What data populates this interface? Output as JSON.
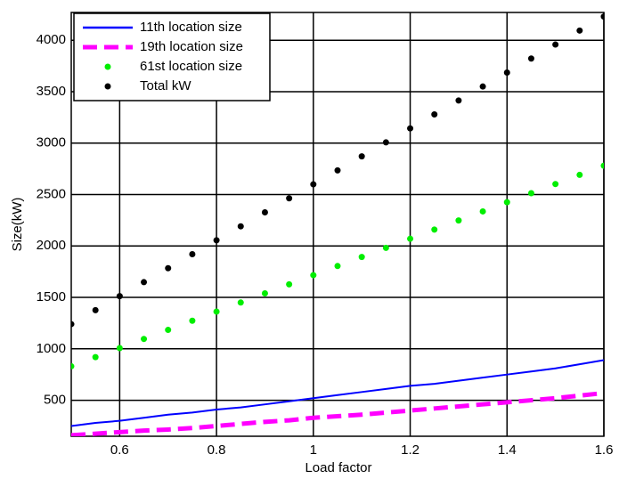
{
  "chart_data": {
    "type": "line",
    "xlabel": "Load factor",
    "ylabel": "Size(kW)",
    "xlim": [
      0.5,
      1.6
    ],
    "ylim": [
      150,
      4270
    ],
    "xticks": [
      0.6,
      0.8,
      1,
      1.2,
      1.4,
      1.6
    ],
    "yticks": [
      500,
      1000,
      1500,
      2000,
      2500,
      3000,
      3500,
      4000
    ],
    "grid": true,
    "legend": "upper-left",
    "x": [
      0.5,
      0.55,
      0.6,
      0.65,
      0.7,
      0.75,
      0.8,
      0.85,
      0.9,
      0.95,
      1,
      1.05,
      1.1,
      1.15,
      1.2,
      1.25,
      1.3,
      1.35,
      1.4,
      1.45,
      1.5,
      1.55,
      1.6
    ],
    "series": [
      {
        "name": "11th location size",
        "color": "#0000ff",
        "style": "solid",
        "values": [
          250,
          280,
          300,
          330,
          360,
          380,
          410,
          430,
          460,
          490,
          520,
          550,
          580,
          610,
          640,
          660,
          690,
          720,
          750,
          780,
          810,
          850,
          890
        ]
      },
      {
        "name": "19th location size",
        "color": "#ff00ff",
        "style": "dashed",
        "values": [
          160,
          175,
          190,
          205,
          215,
          230,
          250,
          270,
          290,
          305,
          330,
          345,
          360,
          380,
          400,
          420,
          440,
          460,
          480,
          500,
          520,
          545,
          570
        ]
      },
      {
        "name": "61st location size",
        "color": "#00ee00",
        "style": "markers",
        "values": [
          830,
          919,
          1007,
          1096,
          1184,
          1273,
          1362,
          1450,
          1539,
          1627,
          1716,
          1805,
          1893,
          1982,
          2070,
          2159,
          2248,
          2336,
          2425,
          2513,
          2602,
          2691,
          2780
        ]
      },
      {
        "name": "Total kW",
        "color": "#000000",
        "style": "markers",
        "values": [
          1240,
          1376,
          1512,
          1648,
          1784,
          1920,
          2055,
          2191,
          2327,
          2463,
          2599,
          2735,
          2871,
          3007,
          3143,
          3279,
          3414,
          3550,
          3686,
          3822,
          3958,
          4094,
          4230
        ]
      }
    ]
  }
}
